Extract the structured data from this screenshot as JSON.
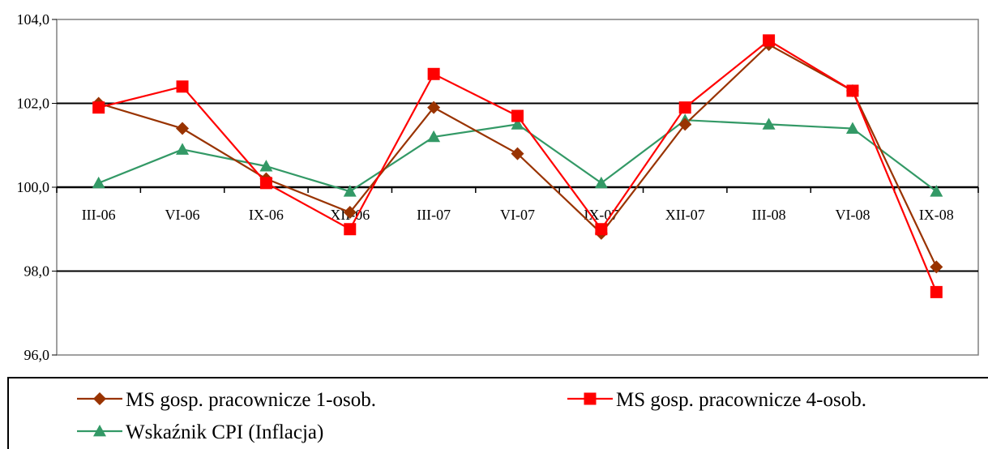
{
  "chart_data": {
    "type": "line",
    "title": "",
    "xlabel": "",
    "ylabel": "",
    "categories": [
      "III-06",
      "VI-06",
      "IX-06",
      "XII-06",
      "III-07",
      "VI-07",
      "IX-07",
      "XII-07",
      "III-08",
      "VI-08",
      "IX-08"
    ],
    "ylim": [
      96.0,
      104.0
    ],
    "yticks": [
      "96,0",
      "98,0",
      "100,0",
      "102,0",
      "104,0"
    ],
    "ytick_values": [
      96,
      98,
      100,
      102,
      104
    ],
    "x_axis_crosses_at": 100,
    "major_gridlines": [
      98,
      102
    ],
    "legend_position": "bottom",
    "series": [
      {
        "name": "MS gosp. pracownicze 1-osob.",
        "color": "#993300",
        "marker": "diamond",
        "values": [
          102.0,
          101.4,
          100.2,
          99.4,
          101.9,
          100.8,
          98.9,
          101.5,
          103.4,
          102.3,
          98.1
        ]
      },
      {
        "name": "MS gosp. pracownicze 4-osob.",
        "color": "#ff0000",
        "marker": "square",
        "values": [
          101.9,
          102.4,
          100.1,
          99.0,
          102.7,
          101.7,
          99.0,
          101.9,
          103.5,
          102.3,
          97.5
        ]
      },
      {
        "name": "Wskaźnik CPI (Inflacja)",
        "color": "#339966",
        "marker": "triangle",
        "values": [
          100.1,
          100.9,
          100.5,
          99.9,
          101.2,
          101.5,
          100.1,
          101.6,
          101.5,
          101.4,
          99.9
        ]
      }
    ]
  }
}
